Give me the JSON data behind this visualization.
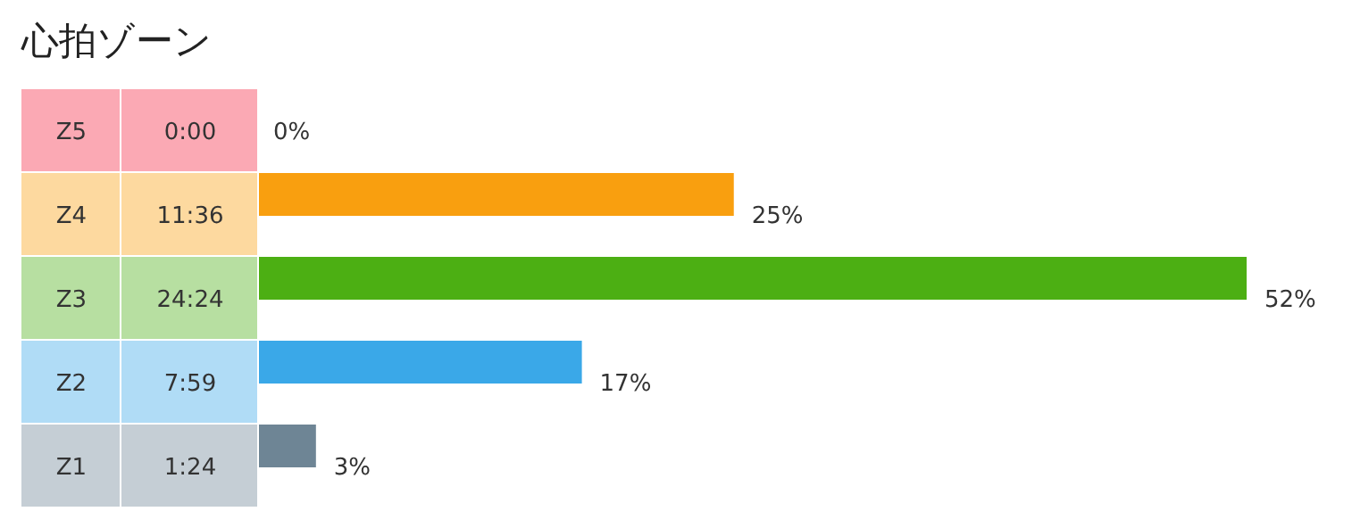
{
  "chart_data": {
    "type": "bar",
    "orientation": "horizontal",
    "title": "心拍ゾーン",
    "categories": [
      "Z5",
      "Z4",
      "Z3",
      "Z2",
      "Z1"
    ],
    "values": [
      0,
      25,
      52,
      17,
      3
    ],
    "colors": [
      "#f52843",
      "#f99f0f",
      "#4caf13",
      "#3aa8e8",
      "#6e8595"
    ],
    "value_labels": [
      "0%",
      "25%",
      "52%",
      "17%",
      "3%"
    ],
    "annotations": [
      "0:00",
      "11:36",
      "24:24",
      "7:59",
      "1:24"
    ]
  }
}
